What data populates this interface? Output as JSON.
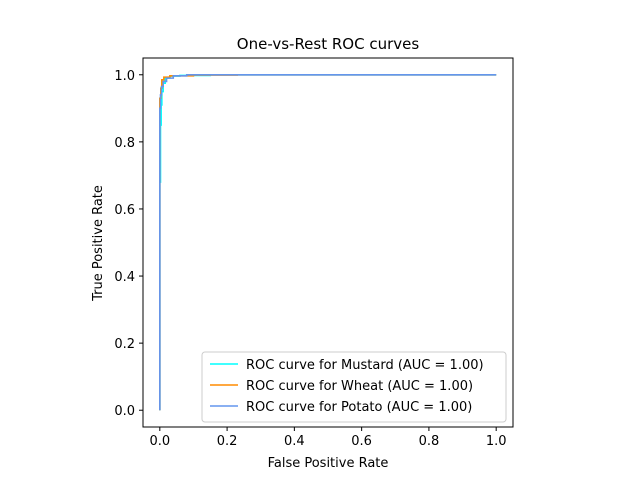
{
  "chart_data": {
    "type": "line",
    "title": "One-vs-Rest ROC curves",
    "xlabel": "False Positive Rate",
    "ylabel": "True Positive Rate",
    "xlim": [
      -0.05,
      1.05
    ],
    "ylim": [
      -0.05,
      1.05
    ],
    "xticks": [
      "0.0",
      "0.2",
      "0.4",
      "0.6",
      "0.8",
      "1.0"
    ],
    "yticks": [
      "0.0",
      "0.2",
      "0.4",
      "0.6",
      "0.8",
      "1.0"
    ],
    "grid": false,
    "legend_position": "lower right",
    "series": [
      {
        "name": "ROC curve for Mustard (AUC = 1.00)",
        "color": "#00ffff",
        "x": [
          0.0,
          0.0,
          0.002,
          0.002,
          0.004,
          0.004,
          0.006,
          0.006,
          0.01,
          0.01,
          0.016,
          0.016,
          0.03,
          0.03,
          0.06,
          0.06,
          0.15,
          0.15,
          1.0
        ],
        "y": [
          0.0,
          0.68,
          0.68,
          0.85,
          0.85,
          0.91,
          0.91,
          0.95,
          0.95,
          0.975,
          0.975,
          0.99,
          0.99,
          0.996,
          0.996,
          0.998,
          0.998,
          1.0,
          1.0
        ]
      },
      {
        "name": "ROC curve for Wheat (AUC = 1.00)",
        "color": "#ff8c00",
        "x": [
          0.0,
          0.0,
          0.003,
          0.003,
          0.006,
          0.006,
          0.012,
          0.012,
          0.03,
          0.03,
          0.1,
          0.1,
          0.23,
          0.23,
          1.0
        ],
        "y": [
          0.0,
          0.93,
          0.93,
          0.96,
          0.96,
          0.985,
          0.985,
          0.993,
          0.993,
          0.997,
          0.997,
          0.999,
          0.999,
          1.0,
          1.0
        ]
      },
      {
        "name": "ROC curve for Potato (AUC = 1.00)",
        "color": "#6495ed",
        "x": [
          0.0,
          0.0,
          0.002,
          0.002,
          0.005,
          0.005,
          0.01,
          0.01,
          0.02,
          0.02,
          0.04,
          0.04,
          0.08,
          0.08,
          1.0
        ],
        "y": [
          0.0,
          0.9,
          0.9,
          0.94,
          0.94,
          0.965,
          0.965,
          0.98,
          0.98,
          0.99,
          0.99,
          0.997,
          0.997,
          1.0,
          1.0
        ]
      }
    ]
  }
}
